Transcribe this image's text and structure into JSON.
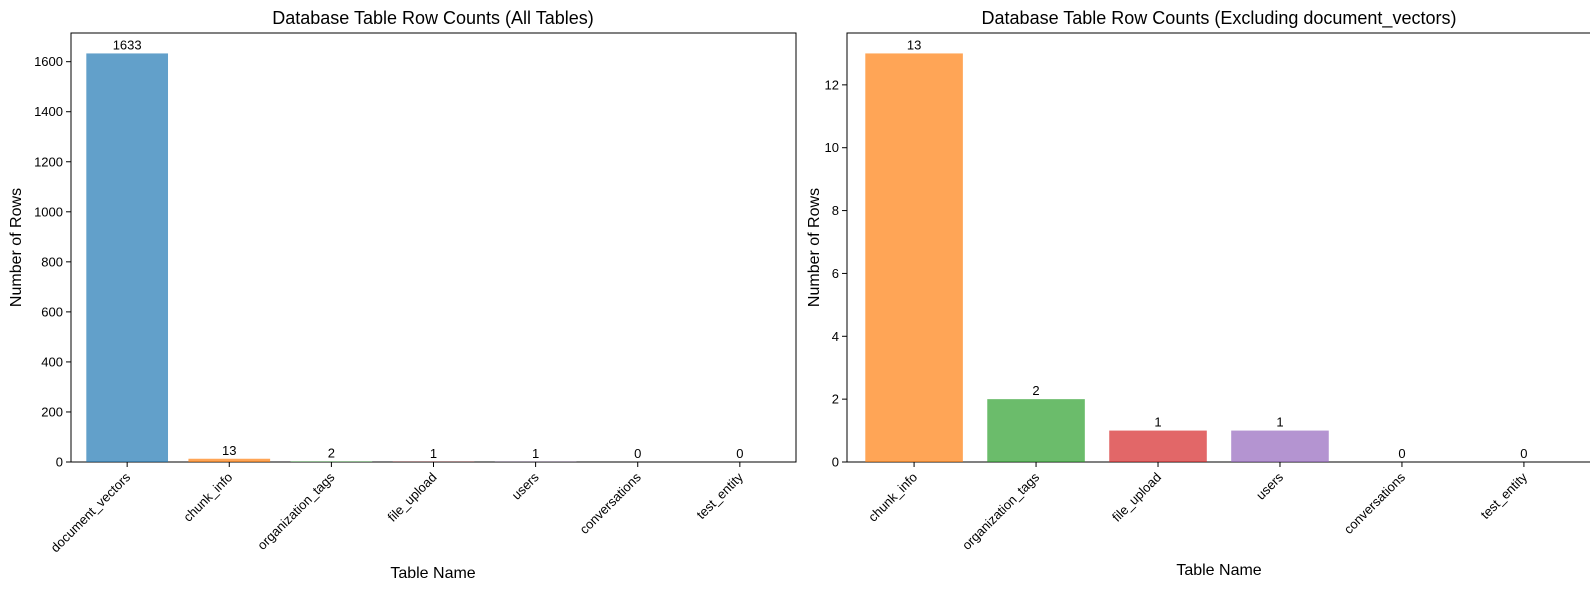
{
  "chart_data": [
    {
      "type": "bar",
      "title": "Database Table Row Counts (All Tables)",
      "xlabel": "Table Name",
      "ylabel": "Number of Rows",
      "categories": [
        "document_vectors",
        "chunk_info",
        "organization_tags",
        "file_upload",
        "users",
        "conversations",
        "test_entity"
      ],
      "values": [
        1633,
        13,
        2,
        1,
        1,
        0,
        0
      ],
      "colors": [
        "#1f77b4",
        "#ff7f0e",
        "#2ca02c",
        "#d62728",
        "#9467bd",
        "#8c564b",
        "#e377c2"
      ],
      "bar_opacity": 0.7,
      "ylim": [
        0,
        1714.65
      ],
      "yticks": [
        0,
        200,
        400,
        600,
        800,
        1000,
        1200,
        1400,
        1600
      ],
      "grid": false,
      "legend": "none"
    },
    {
      "type": "bar",
      "title": "Database Table Row Counts (Excluding document_vectors)",
      "xlabel": "Table Name",
      "ylabel": "Number of Rows",
      "categories": [
        "chunk_info",
        "organization_tags",
        "file_upload",
        "users",
        "conversations",
        "test_entity"
      ],
      "values": [
        13,
        2,
        1,
        1,
        0,
        0
      ],
      "colors": [
        "#ff7f0e",
        "#2ca02c",
        "#d62728",
        "#9467bd",
        "#8c564b",
        "#e377c2"
      ],
      "bar_opacity": 0.7,
      "ylim": [
        0,
        13.65
      ],
      "yticks": [
        0,
        2,
        4,
        6,
        8,
        10,
        12
      ],
      "grid": false,
      "legend": "none"
    }
  ]
}
